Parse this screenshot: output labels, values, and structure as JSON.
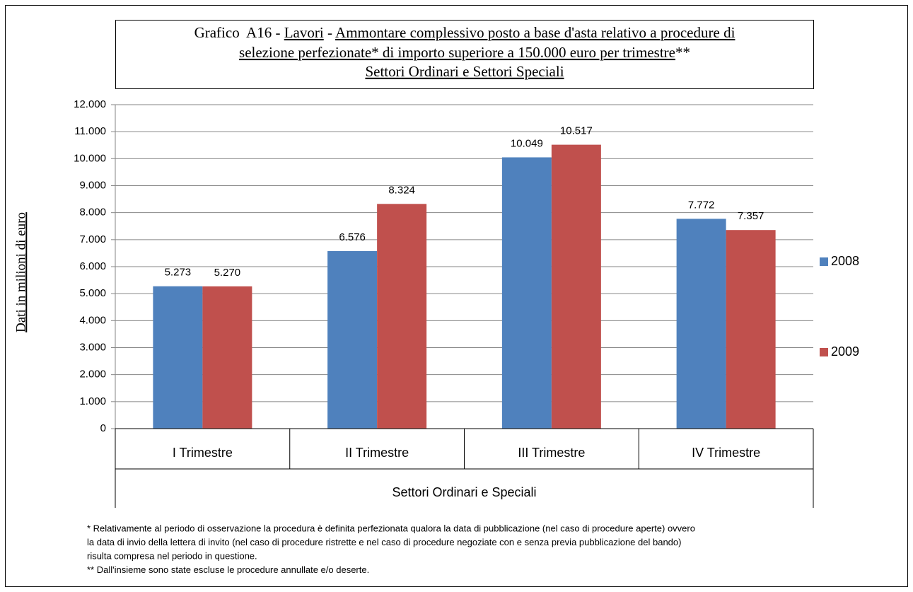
{
  "chart_data": {
    "type": "bar",
    "title": [
      "Grafico  A16 - ",
      "Lavori",
      " - ",
      "Ammontare complessivo posto a base d'asta relativo a procedure di",
      "selezione perfezionate* di importo superiore a 150.000 euro per trimestre",
      "**",
      "Settori Ordinari e Settori Speciali"
    ],
    "ylabel": "Dati in milioni di euro",
    "categories": [
      "I Trimestre",
      "II Trimestre",
      "III Trimestre",
      "IV Trimestre"
    ],
    "group_label": "Settori Ordinari e Speciali",
    "series": [
      {
        "name": "2008",
        "color": "#4f81bd",
        "values": [
          5273,
          6576,
          10049,
          7772
        ],
        "value_labels": [
          "5.273",
          "6.576",
          "10.049",
          "7.772"
        ]
      },
      {
        "name": "2009",
        "color": "#c0504d",
        "values": [
          5270,
          8324,
          10517,
          7357
        ],
        "value_labels": [
          "5.270",
          "8.324",
          "10.517",
          "7.357"
        ]
      }
    ],
    "ylim": [
      0,
      12000
    ],
    "yticks": [
      0,
      {
        "value": 1000,
        "label": "1.000"
      },
      {
        "value": 2000,
        "label": "2.000"
      },
      {
        "value": 3000,
        "label": "3.000"
      },
      {
        "value": 4000,
        "label": "4.000"
      },
      {
        "value": 5000,
        "label": "5.000"
      },
      {
        "value": 6000,
        "label": "6.000"
      },
      {
        "value": 7000,
        "label": "7.000"
      },
      {
        "value": 8000,
        "label": "8.000"
      },
      {
        "value": 9000,
        "label": "9.000"
      },
      {
        "value": 10000,
        "label": "10.000"
      },
      {
        "value": 11000,
        "label": "11.000"
      },
      {
        "value": 12000,
        "label": "12.000"
      }
    ],
    "grid": true,
    "legend": "right",
    "notes": [
      "* Relativamente al periodo di osservazione la procedura è definita perfezionata qualora la data di pubblicazione (nel caso di procedure aperte) ovvero",
      "la data di invio della lettera di invito (nel caso di procedure ristrette e nel caso di procedure negoziate con e senza previa pubblicazione del bando)",
      "risulta compresa nel periodo in questione.",
      "** Dall'insieme sono state escluse le procedure annullate e/o deserte."
    ]
  }
}
